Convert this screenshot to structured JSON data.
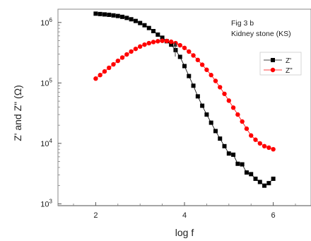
{
  "chart_data": {
    "type": "scatter",
    "xlabel": "log f",
    "ylabel": "Z' and Z\" (Ω)",
    "xlim": [
      1.15,
      6.85
    ],
    "ylim_log10": [
      2.97,
      6.22
    ],
    "y_scale": "log",
    "x_ticks": [
      "2",
      "4",
      "6"
    ],
    "y_ticks": [
      "10^3",
      "10^4",
      "10^5",
      "10^6"
    ],
    "annotations": [
      "Fig 3 b",
      "Kidney stone (KS)"
    ],
    "legend_position": "right",
    "grid": false,
    "series": [
      {
        "name": "Z'",
        "marker": "square",
        "color": "#000000",
        "x": [
          2.0,
          2.1,
          2.2,
          2.3,
          2.4,
          2.5,
          2.6,
          2.7,
          2.8,
          2.9,
          3.0,
          3.1,
          3.2,
          3.3,
          3.4,
          3.5,
          3.6,
          3.7,
          3.8,
          3.9,
          4.0,
          4.1,
          4.2,
          4.3,
          4.4,
          4.5,
          4.6,
          4.7,
          4.8,
          4.9,
          5.0,
          5.1,
          5.2,
          5.3,
          5.4,
          5.5,
          5.6,
          5.7,
          5.8,
          5.9,
          6.0
        ],
        "y": [
          1400000,
          1380000,
          1360000,
          1340000,
          1310000,
          1280000,
          1240000,
          1190000,
          1130000,
          1060000,
          980000,
          900000,
          810000,
          720000,
          630000,
          560000,
          490000,
          430000,
          350000,
          270000,
          190000,
          130000,
          90000,
          60000,
          42000,
          30000,
          22000,
          16000,
          12000,
          9000,
          6800,
          6500,
          4600,
          4500,
          3300,
          3100,
          2600,
          2300,
          2000,
          2200,
          2600
        ]
      },
      {
        "name": "Z\"",
        "marker": "circle",
        "color": "#ff0000",
        "x": [
          2.0,
          2.1,
          2.2,
          2.3,
          2.4,
          2.5,
          2.6,
          2.7,
          2.8,
          2.9,
          3.0,
          3.1,
          3.2,
          3.3,
          3.4,
          3.5,
          3.6,
          3.7,
          3.8,
          3.9,
          4.0,
          4.1,
          4.2,
          4.3,
          4.4,
          4.5,
          4.6,
          4.7,
          4.8,
          4.9,
          5.0,
          5.1,
          5.2,
          5.3,
          5.4,
          5.5,
          5.6,
          5.7,
          5.8,
          5.9,
          6.0
        ],
        "y": [
          118000,
          135000,
          155000,
          178000,
          203000,
          232000,
          263000,
          296000,
          331000,
          366000,
          400000,
          430000,
          455000,
          475000,
          490000,
          498000,
          495000,
          480000,
          455000,
          420000,
          380000,
          330000,
          285000,
          240000,
          200000,
          165000,
          135000,
          108000,
          85000,
          66000,
          51000,
          39000,
          30000,
          23000,
          17500,
          13500,
          11500,
          10000,
          9000,
          8500,
          8000
        ]
      }
    ]
  }
}
